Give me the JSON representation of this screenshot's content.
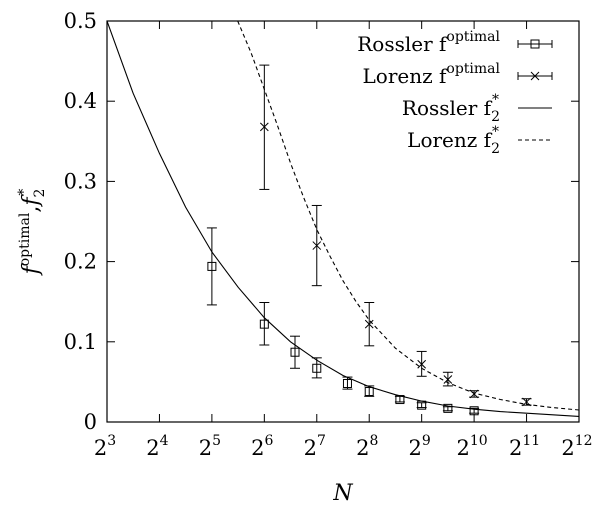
{
  "chart_data": {
    "type": "scatter",
    "xlabel": "N",
    "ylabel": {
      "base": "f",
      "sup1": "optimal",
      "sep": ",",
      "base2": "f",
      "sup2": "*",
      "sub2": "2"
    },
    "x_scale": "log2",
    "xlim": [
      8,
      4096
    ],
    "ylim": [
      0,
      0.5
    ],
    "x_ticks": [
      {
        "base": "2",
        "exp": "3",
        "value": 8
      },
      {
        "base": "2",
        "exp": "4",
        "value": 16
      },
      {
        "base": "2",
        "exp": "5",
        "value": 32
      },
      {
        "base": "2",
        "exp": "6",
        "value": 64
      },
      {
        "base": "2",
        "exp": "7",
        "value": 128
      },
      {
        "base": "2",
        "exp": "8",
        "value": 256
      },
      {
        "base": "2",
        "exp": "9",
        "value": 512
      },
      {
        "base": "2",
        "exp": "10",
        "value": 1024
      },
      {
        "base": "2",
        "exp": "11",
        "value": 2048
      },
      {
        "base": "2",
        "exp": "12",
        "value": 4096
      }
    ],
    "y_ticks": [
      {
        "label": "0",
        "value": 0
      },
      {
        "label": "0.1",
        "value": 0.1
      },
      {
        "label": "0.2",
        "value": 0.2
      },
      {
        "label": "0.3",
        "value": 0.3
      },
      {
        "label": "0.4",
        "value": 0.4
      },
      {
        "label": "0.5",
        "value": 0.5
      }
    ],
    "legend_position": "top-right",
    "series": [
      {
        "name": "Rossler f^optimal",
        "legend": {
          "base": "Rossler f",
          "sup": "optimal",
          "sub": ""
        },
        "kind": "errorbar",
        "marker": "square",
        "points": [
          {
            "x": 32,
            "y": 0.194,
            "lo": 0.146,
            "hi": 0.242
          },
          {
            "x": 64,
            "y": 0.122,
            "lo": 0.096,
            "hi": 0.149
          },
          {
            "x": 96,
            "y": 0.087,
            "lo": 0.067,
            "hi": 0.107
          },
          {
            "x": 128,
            "y": 0.067,
            "lo": 0.055,
            "hi": 0.08
          },
          {
            "x": 192,
            "y": 0.048,
            "lo": 0.041,
            "hi": 0.056
          },
          {
            "x": 256,
            "y": 0.038,
            "lo": 0.032,
            "hi": 0.045
          },
          {
            "x": 384,
            "y": 0.028,
            "lo": 0.025,
            "hi": 0.032
          },
          {
            "x": 512,
            "y": 0.021,
            "lo": 0.018,
            "hi": 0.024
          },
          {
            "x": 724,
            "y": 0.017,
            "lo": 0.014,
            "hi": 0.019
          },
          {
            "x": 1024,
            "y": 0.014,
            "lo": 0.011,
            "hi": 0.017
          }
        ]
      },
      {
        "name": "Lorenz f^optimal",
        "legend": {
          "base": "Lorenz f",
          "sup": "optimal",
          "sub": ""
        },
        "kind": "errorbar",
        "marker": "cross",
        "points": [
          {
            "x": 64,
            "y": 0.368,
            "lo": 0.29,
            "hi": 0.445
          },
          {
            "x": 128,
            "y": 0.22,
            "lo": 0.17,
            "hi": 0.27
          },
          {
            "x": 256,
            "y": 0.122,
            "lo": 0.095,
            "hi": 0.149
          },
          {
            "x": 512,
            "y": 0.072,
            "lo": 0.057,
            "hi": 0.088
          },
          {
            "x": 724,
            "y": 0.053,
            "lo": 0.045,
            "hi": 0.062
          },
          {
            "x": 1024,
            "y": 0.035,
            "lo": 0.031,
            "hi": 0.039
          },
          {
            "x": 2048,
            "y": 0.025,
            "lo": 0.021,
            "hi": 0.029
          }
        ]
      },
      {
        "name": "Rossler f2*",
        "legend": {
          "base": "Rossler f",
          "sup": "*",
          "sub": "2"
        },
        "kind": "line",
        "style": "solid",
        "points": [
          {
            "x": 8,
            "y": 0.5
          },
          {
            "x": 11.3,
            "y": 0.41
          },
          {
            "x": 16,
            "y": 0.335
          },
          {
            "x": 22.6,
            "y": 0.268
          },
          {
            "x": 32,
            "y": 0.212
          },
          {
            "x": 45.3,
            "y": 0.168
          },
          {
            "x": 64,
            "y": 0.13
          },
          {
            "x": 90.5,
            "y": 0.1
          },
          {
            "x": 128,
            "y": 0.077
          },
          {
            "x": 181,
            "y": 0.058
          },
          {
            "x": 256,
            "y": 0.044
          },
          {
            "x": 362,
            "y": 0.034
          },
          {
            "x": 512,
            "y": 0.026
          },
          {
            "x": 724,
            "y": 0.02
          },
          {
            "x": 1024,
            "y": 0.016
          },
          {
            "x": 1448,
            "y": 0.013
          },
          {
            "x": 2048,
            "y": 0.011
          },
          {
            "x": 2896,
            "y": 0.009
          },
          {
            "x": 4096,
            "y": 0.007
          }
        ]
      },
      {
        "name": "Lorenz f2*",
        "legend": {
          "base": "Lorenz f",
          "sup": "*",
          "sub": "2"
        },
        "kind": "line",
        "style": "dashed",
        "points": [
          {
            "x": 45,
            "y": 0.5
          },
          {
            "x": 53.8,
            "y": 0.46
          },
          {
            "x": 64,
            "y": 0.415
          },
          {
            "x": 76.1,
            "y": 0.37
          },
          {
            "x": 90.5,
            "y": 0.323
          },
          {
            "x": 107.6,
            "y": 0.28
          },
          {
            "x": 128,
            "y": 0.24
          },
          {
            "x": 152.2,
            "y": 0.207
          },
          {
            "x": 181,
            "y": 0.176
          },
          {
            "x": 215.3,
            "y": 0.15
          },
          {
            "x": 256,
            "y": 0.127
          },
          {
            "x": 362,
            "y": 0.092
          },
          {
            "x": 512,
            "y": 0.067
          },
          {
            "x": 724,
            "y": 0.049
          },
          {
            "x": 1024,
            "y": 0.036
          },
          {
            "x": 1448,
            "y": 0.028
          },
          {
            "x": 2048,
            "y": 0.022
          },
          {
            "x": 2896,
            "y": 0.018
          },
          {
            "x": 4096,
            "y": 0.015
          }
        ]
      }
    ]
  }
}
